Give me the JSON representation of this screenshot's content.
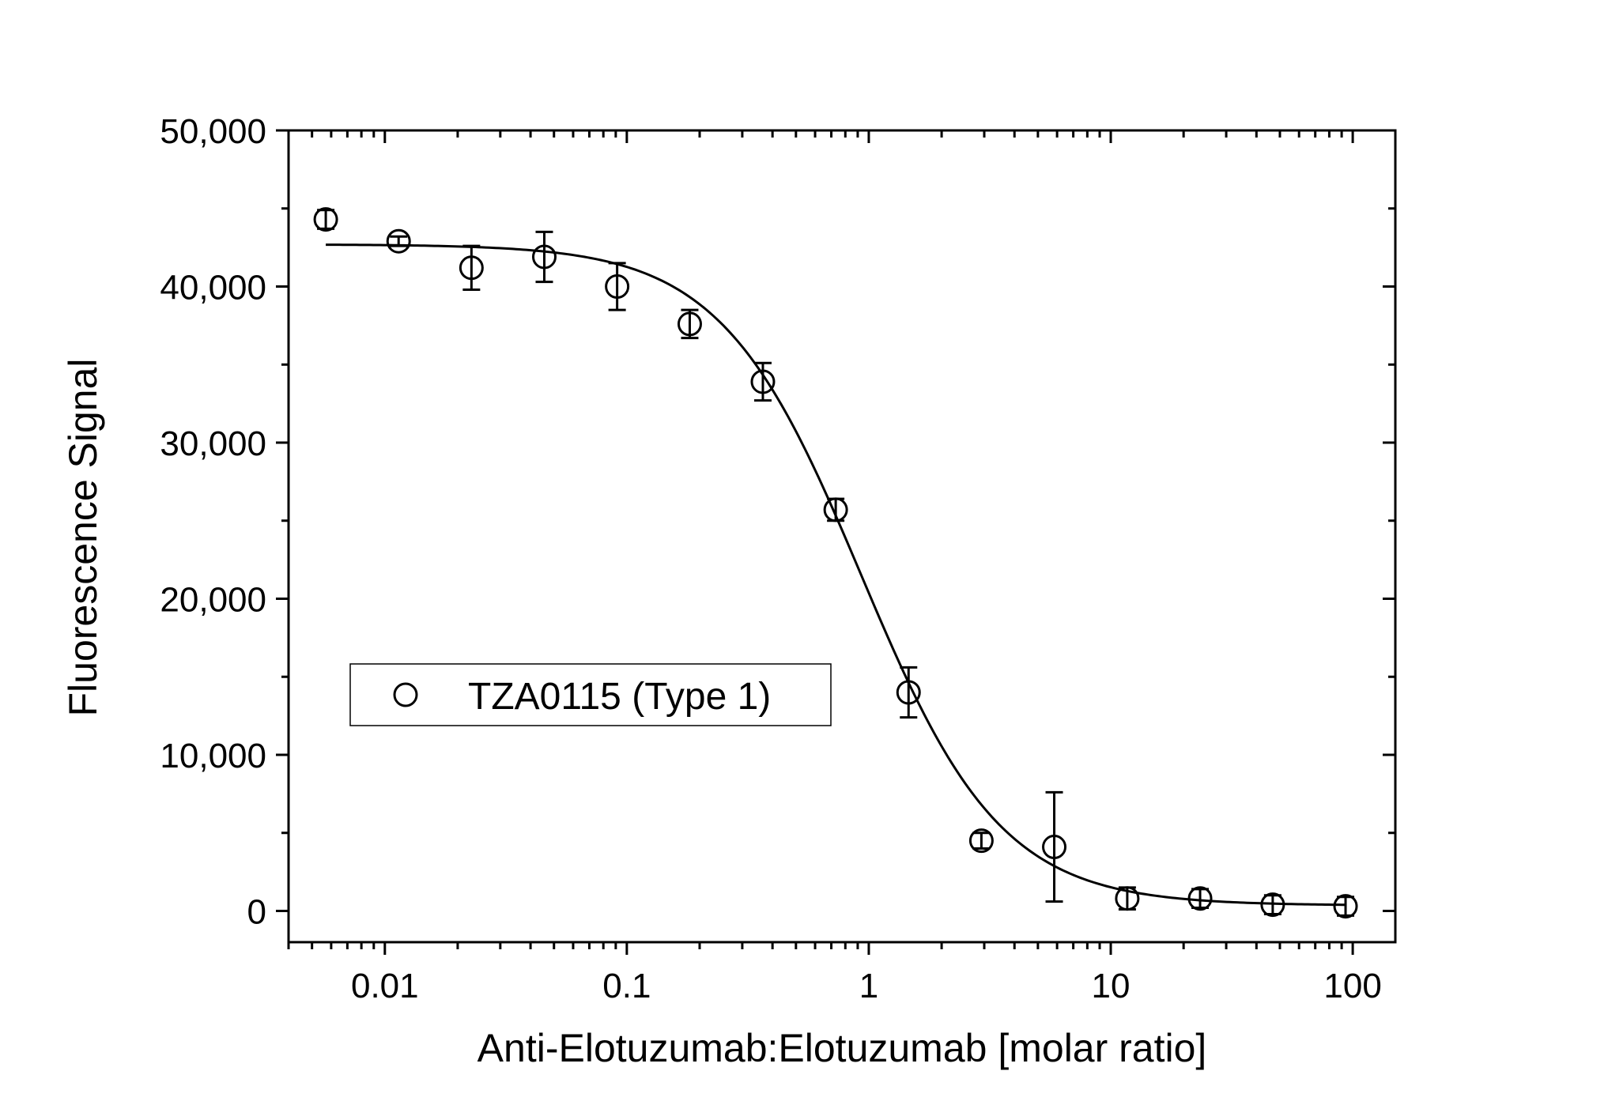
{
  "chart_data": {
    "type": "scatter",
    "xlabel": "Anti-Elotuzumab:Elotuzumab [molar ratio]",
    "ylabel": "Fluorescence Signal",
    "x_scale": "log",
    "xlim": [
      0.004,
      150
    ],
    "ylim": [
      -2000,
      50000
    ],
    "x_ticks": [
      0.01,
      0.1,
      1,
      10,
      100
    ],
    "x_tick_labels": [
      "0.01",
      "0.1",
      "1",
      "10",
      "100"
    ],
    "y_ticks": [
      0,
      10000,
      20000,
      30000,
      40000,
      50000
    ],
    "y_tick_labels": [
      "0",
      "10,000",
      "20,000",
      "30,000",
      "40,000",
      "50,000"
    ],
    "grid": false,
    "legend_position": "middle-left",
    "series": [
      {
        "name": "TZA0115 (Type 1)",
        "marker": "open-circle",
        "color": "#000000",
        "points": [
          {
            "x": 0.0057,
            "y": 44300,
            "err": 600
          },
          {
            "x": 0.0114,
            "y": 42900,
            "err": 300
          },
          {
            "x": 0.0228,
            "y": 41200,
            "err": 1400
          },
          {
            "x": 0.0456,
            "y": 41900,
            "err": 1600
          },
          {
            "x": 0.0912,
            "y": 40000,
            "err": 1500
          },
          {
            "x": 0.182,
            "y": 37600,
            "err": 900
          },
          {
            "x": 0.365,
            "y": 33900,
            "err": 1200
          },
          {
            "x": 0.73,
            "y": 25700,
            "err": 700
          },
          {
            "x": 1.46,
            "y": 14000,
            "err": 1600
          },
          {
            "x": 2.92,
            "y": 4500,
            "err": 500
          },
          {
            "x": 5.84,
            "y": 4100,
            "err": 3500
          },
          {
            "x": 11.7,
            "y": 800,
            "err": 700
          },
          {
            "x": 23.4,
            "y": 800,
            "err": 600
          },
          {
            "x": 46.7,
            "y": 400,
            "err": 600
          },
          {
            "x": 93.4,
            "y": 300,
            "err": 600
          }
        ]
      }
    ],
    "fit_curve": {
      "type": "four-parameter-logistic",
      "top": 42700,
      "bottom": 350,
      "ec50": 0.93,
      "hill": 1.5,
      "x_range": [
        0.0057,
        93.4
      ],
      "color": "#000000"
    }
  }
}
